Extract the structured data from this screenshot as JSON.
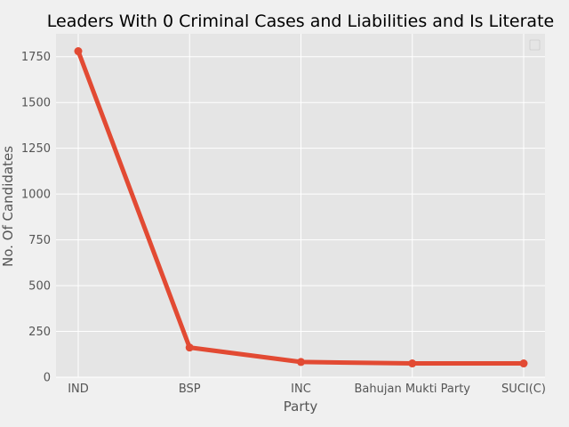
{
  "chart_data": {
    "type": "line",
    "title": "Leaders With 0 Criminal Cases and Liabilities and Is Literate",
    "xlabel": "Party",
    "ylabel": "No. Of Candidates",
    "categories": [
      "IND",
      "BSP",
      "INC",
      "Bahujan Mukti Party",
      "SUCI(C)"
    ],
    "series": [
      {
        "values": [
          1780,
          162,
          83,
          75,
          75
        ]
      }
    ],
    "ylim": [
      0,
      1875
    ],
    "yticks": [
      0,
      250,
      500,
      750,
      1000,
      1250,
      1500,
      1750
    ],
    "grid": true,
    "legend": "top-right",
    "colors": {
      "line": "#e24a33",
      "plot_bg": "#e5e5e5",
      "figure_bg": "#f0f0f0",
      "grid": "#ffffff"
    }
  }
}
